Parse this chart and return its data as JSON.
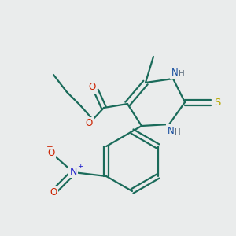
{
  "bg_color": "#eaecec",
  "atom_colors": {
    "C": "#1a6b5a",
    "N": "#1a50a0",
    "O": "#cc2200",
    "S": "#b8a800",
    "H": "#607080",
    "NO2_N": "#1a1acc",
    "NO2_O": "#cc2200"
  },
  "bond_color": "#1a6b5a",
  "line_width": 1.6,
  "font_size": 8.5,
  "fig_size": [
    3.0,
    3.0
  ],
  "dpi": 100,
  "xlim": [
    0,
    300
  ],
  "ylim": [
    0,
    300
  ]
}
